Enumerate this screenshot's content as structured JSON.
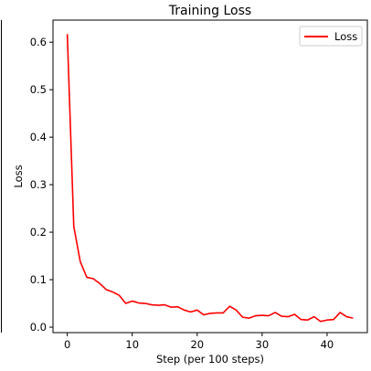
{
  "chart_data": {
    "type": "line",
    "title": "Training Loss",
    "xlabel": "Step (per 100 steps)",
    "ylabel": "Loss",
    "xlim": [
      -2.2,
      46.2
    ],
    "ylim": [
      -0.0115,
      0.6465
    ],
    "xticks": [
      0,
      10,
      20,
      30,
      40
    ],
    "yticks": [
      0.0,
      0.1,
      0.2,
      0.3,
      0.4,
      0.5,
      0.6
    ],
    "grid": false,
    "legend_position": "top-right",
    "series": [
      {
        "name": "Loss",
        "color": "#ff0000",
        "x": [
          0,
          1,
          2,
          3,
          4,
          5,
          6,
          7,
          8,
          9,
          10,
          11,
          12,
          13,
          14,
          15,
          16,
          17,
          18,
          19,
          20,
          21,
          22,
          23,
          24,
          25,
          26,
          27,
          28,
          29,
          30,
          31,
          32,
          33,
          34,
          35,
          36,
          37,
          38,
          39,
          40,
          41,
          42,
          43,
          44
        ],
        "y": [
          0.617,
          0.212,
          0.138,
          0.105,
          0.102,
          0.092,
          0.079,
          0.074,
          0.067,
          0.05,
          0.055,
          0.051,
          0.05,
          0.047,
          0.046,
          0.047,
          0.042,
          0.043,
          0.036,
          0.032,
          0.036,
          0.026,
          0.029,
          0.03,
          0.03,
          0.044,
          0.036,
          0.021,
          0.019,
          0.024,
          0.025,
          0.024,
          0.031,
          0.023,
          0.022,
          0.027,
          0.016,
          0.015,
          0.022,
          0.012,
          0.015,
          0.016,
          0.031,
          0.022,
          0.019
        ]
      }
    ]
  }
}
